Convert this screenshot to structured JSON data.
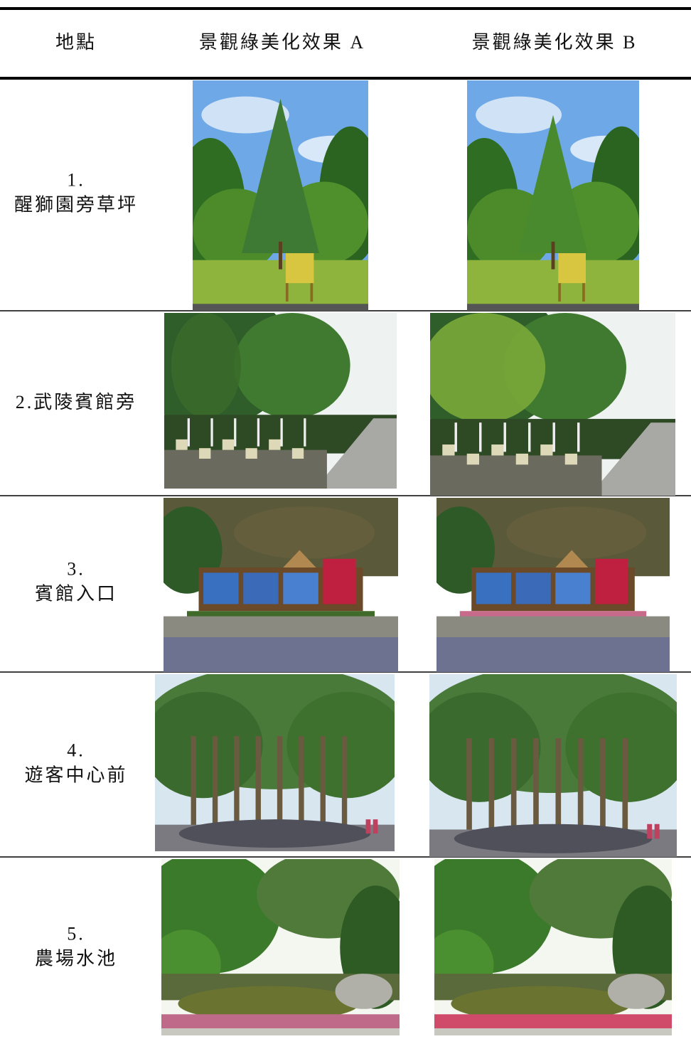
{
  "table": {
    "header": [
      "地點",
      "景觀綠美化效果 A",
      "景觀綠美化效果 B"
    ],
    "rows": [
      {
        "label": [
          "1.",
          "醒獅園旁草坪"
        ]
      },
      {
        "label": [
          "2.武陵賓館旁"
        ]
      },
      {
        "label": [
          "3.",
          "賓館入口"
        ]
      },
      {
        "label": [
          "4.",
          "遊客中心前"
        ]
      },
      {
        "label": [
          "5.",
          "農場水池"
        ]
      }
    ]
  }
}
